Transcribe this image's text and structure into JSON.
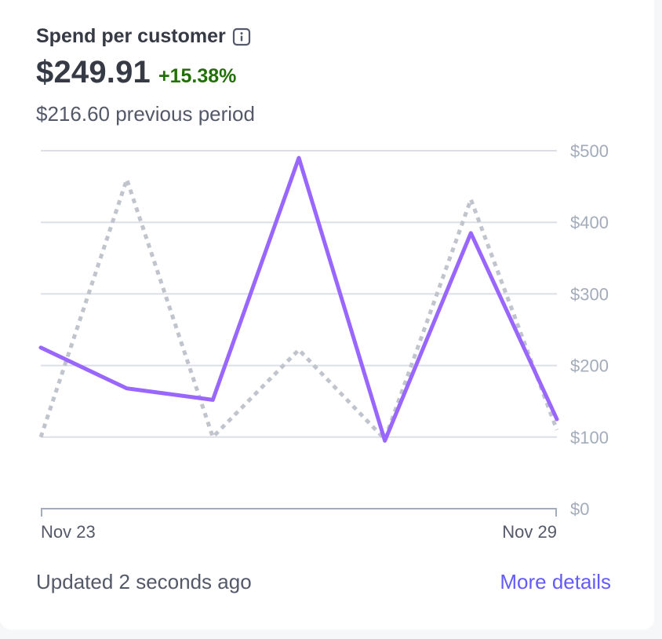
{
  "card": {
    "title": "Spend per customer",
    "metric": "$249.91",
    "delta": "+15.38%",
    "previous": "$216.60 previous period",
    "updated": "Updated 2 seconds ago",
    "more_details": "More details"
  },
  "colors": {
    "current": "#9966ff",
    "previous": "#c0c4cc",
    "grid": "#dcdfe6",
    "axis_text": "#a3acba",
    "delta": "#217005",
    "link": "#635bff"
  },
  "chart_data": {
    "type": "line",
    "x_labels": [
      "Nov 23",
      "Nov 29"
    ],
    "x_count": 7,
    "y_ticks": [
      "$0",
      "$100",
      "$200",
      "$300",
      "$400",
      "$500"
    ],
    "ylim": [
      0,
      500
    ],
    "series": [
      {
        "style": "solid",
        "values": [
          225,
          168,
          152,
          490,
          95,
          385,
          125
        ]
      },
      {
        "style": "dotted",
        "values": [
          100,
          460,
          100,
          222,
          97,
          432,
          110
        ]
      }
    ]
  }
}
